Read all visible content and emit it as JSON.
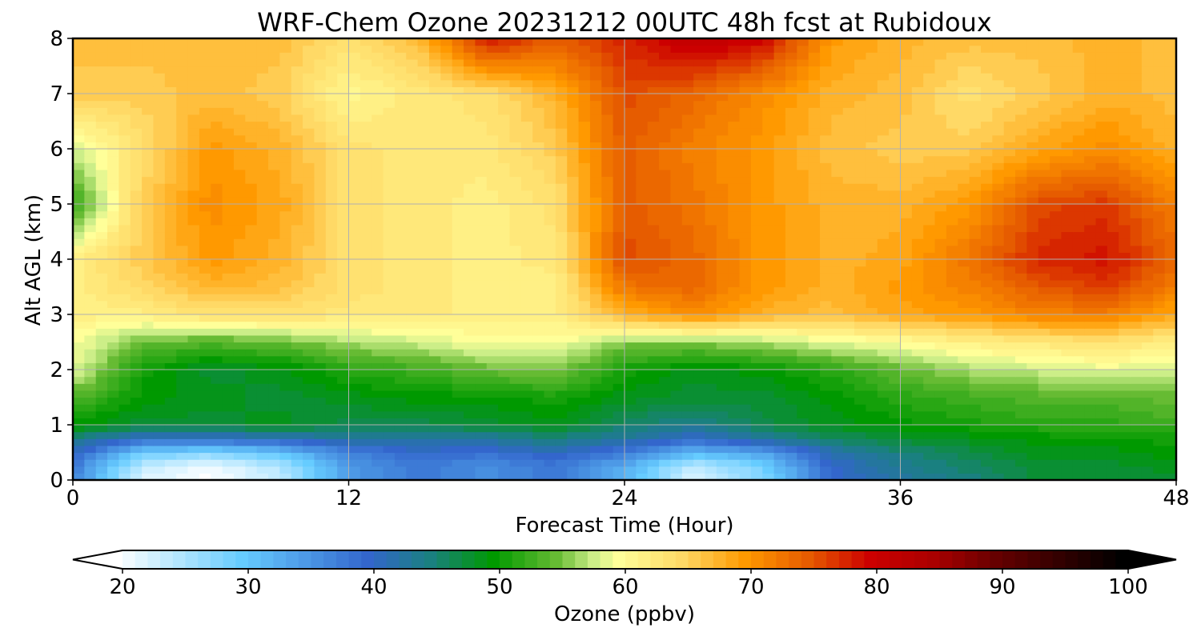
{
  "chart_data": {
    "type": "heatmap",
    "title": "WRF-Chem Ozone  20231212 00UTC 48h fcst at Rubidoux",
    "xlabel": "Forecast Time (Hour)",
    "ylabel": "Alt AGL (km)",
    "xlim": [
      0,
      48
    ],
    "ylim": [
      0,
      8
    ],
    "x_ticks": [
      "0",
      "12",
      "24",
      "36",
      "48"
    ],
    "y_ticks": [
      "0",
      "1",
      "2",
      "3",
      "4",
      "5",
      "6",
      "7",
      "8"
    ],
    "grid": true,
    "x": [
      0,
      3,
      6,
      9,
      12,
      15,
      18,
      21,
      24,
      27,
      30,
      33,
      36,
      39,
      42,
      45,
      48
    ],
    "y": [
      0,
      0.25,
      0.5,
      0.75,
      1,
      1.5,
      2,
      2.5,
      3,
      3.5,
      4,
      5,
      6,
      7,
      8
    ],
    "z": [
      [
        37,
        22,
        20,
        24,
        35,
        38,
        36,
        38,
        33,
        22,
        28,
        40,
        43,
        45,
        48,
        48,
        48
      ],
      [
        38,
        24,
        21,
        25,
        35,
        38,
        36,
        38,
        33,
        24,
        29,
        40,
        44,
        46,
        48,
        48,
        49
      ],
      [
        41,
        30,
        28,
        31,
        37,
        40,
        39,
        41,
        38,
        32,
        34,
        42,
        45,
        47,
        49,
        49,
        50
      ],
      [
        45,
        40,
        40,
        41,
        43,
        43,
        43,
        45,
        43,
        40,
        43,
        46,
        48,
        49,
        50,
        50,
        51
      ],
      [
        50,
        48,
        48,
        49,
        47,
        47,
        48,
        49,
        46,
        44,
        47,
        49,
        50,
        51,
        52,
        52,
        53
      ],
      [
        54,
        50,
        49,
        48,
        49,
        50,
        50,
        51,
        49,
        48,
        48,
        50,
        52,
        53,
        54,
        54,
        55
      ],
      [
        59,
        51,
        48,
        49,
        52,
        53,
        55,
        56,
        51,
        49,
        50,
        52,
        55,
        57,
        58,
        59,
        58
      ],
      [
        60,
        55,
        54,
        55,
        57,
        58,
        60,
        60,
        56,
        56,
        57,
        59,
        60,
        62,
        63,
        64,
        62
      ],
      [
        62,
        62,
        64,
        64,
        63,
        63,
        62,
        62,
        68,
        71,
        68,
        67,
        69,
        70,
        72,
        72,
        69
      ],
      [
        62,
        65,
        68,
        67,
        64,
        63,
        62,
        62,
        73,
        74,
        70,
        68,
        70,
        72,
        75,
        77,
        72
      ],
      [
        62,
        66,
        70,
        68,
        64,
        63,
        62,
        63,
        76,
        74,
        70,
        68,
        69,
        73,
        78,
        79,
        74
      ],
      [
        52,
        66,
        71,
        69,
        64,
        63,
        62,
        64,
        75,
        73,
        70,
        68,
        68,
        70,
        76,
        77,
        72
      ],
      [
        58,
        64,
        70,
        68,
        64,
        63,
        63,
        66,
        75,
        72,
        70,
        67,
        66,
        66,
        69,
        71,
        68
      ],
      [
        66,
        66,
        67,
        66,
        61,
        63,
        64,
        68,
        76,
        74,
        71,
        68,
        67,
        64,
        66,
        68,
        67
      ],
      [
        67,
        67,
        67,
        67,
        64,
        67,
        79,
        75,
        78,
        82,
        80,
        70,
        68,
        67,
        67,
        68,
        67
      ]
    ],
    "colorbar": {
      "label": "Ozone  (ppbv)",
      "min": 20,
      "max": 100,
      "step": 1,
      "ticks": [
        "20",
        "30",
        "40",
        "50",
        "60",
        "70",
        "80",
        "90",
        "100"
      ],
      "extend": "both",
      "stops": [
        {
          "v": 20,
          "c": "#ffffff"
        },
        {
          "v": 30,
          "c": "#66ccff"
        },
        {
          "v": 40,
          "c": "#3366cc"
        },
        {
          "v": 45,
          "c": "#1a8080"
        },
        {
          "v": 50,
          "c": "#009900"
        },
        {
          "v": 55,
          "c": "#66bb33"
        },
        {
          "v": 58,
          "c": "#ccee88"
        },
        {
          "v": 60,
          "c": "#ffff99"
        },
        {
          "v": 65,
          "c": "#ffd966"
        },
        {
          "v": 70,
          "c": "#ff9900"
        },
        {
          "v": 75,
          "c": "#e65c00"
        },
        {
          "v": 80,
          "c": "#cc0000"
        },
        {
          "v": 85,
          "c": "#aa0000"
        },
        {
          "v": 90,
          "c": "#660000"
        },
        {
          "v": 95,
          "c": "#330000"
        },
        {
          "v": 100,
          "c": "#000000"
        }
      ]
    }
  }
}
